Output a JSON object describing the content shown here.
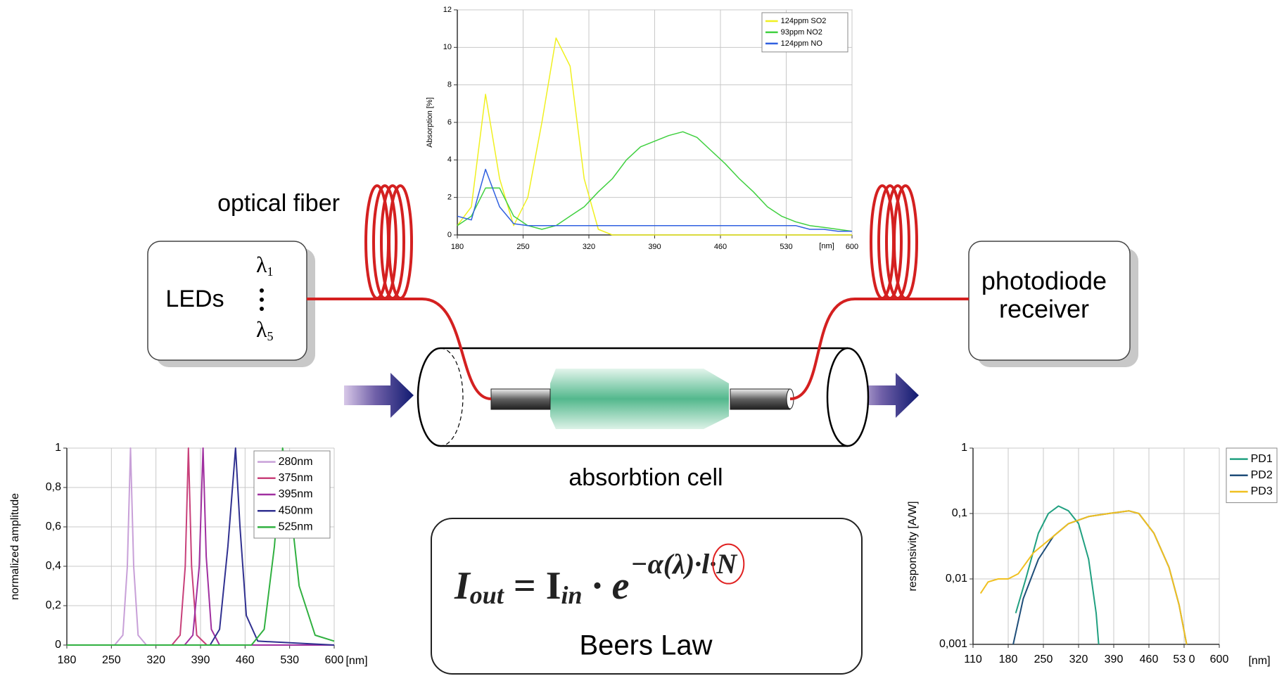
{
  "diagram": {
    "fiber_label": "optical fiber",
    "source": {
      "label": "LEDs",
      "lambda_first": {
        "symbol": "λ",
        "index": "1"
      },
      "lambda_last": {
        "symbol": "λ",
        "index": "5"
      }
    },
    "receiver": {
      "line1": "photodiode",
      "line2": "receiver"
    },
    "cell_label": "absorbtion cell",
    "formula": {
      "base1": "I",
      "sub1": "out",
      "mid": " = I",
      "sub2": "in",
      "tail": " · e",
      "exponent": "−α(λ)·l·N"
    },
    "law_label": "Beers Law"
  },
  "chart_data": [
    {
      "type": "line",
      "ylabel": "Absorption [%]",
      "xlabel": "[nm]",
      "x": [
        180,
        195,
        210,
        225,
        240,
        255,
        270,
        285,
        300,
        315,
        330,
        345,
        360,
        375,
        390,
        405,
        420,
        435,
        450,
        465,
        480,
        495,
        510,
        525,
        540,
        555,
        570,
        585,
        600
      ],
      "series": [
        {
          "name": "124ppm SO2",
          "color": "#f0f020",
          "values": [
            0.5,
            1.5,
            7.5,
            3,
            0.5,
            2,
            6,
            10.5,
            9,
            3,
            0.3,
            0,
            0,
            0,
            0,
            0,
            0,
            0,
            0,
            0,
            0,
            0,
            0,
            0,
            0,
            0,
            0,
            0,
            0
          ]
        },
        {
          "name": "93ppm NO2",
          "color": "#40d040",
          "values": [
            0.5,
            1,
            2.5,
            2.5,
            1,
            0.5,
            0.3,
            0.5,
            1,
            1.5,
            2.3,
            3,
            4,
            4.7,
            5,
            5.3,
            5.5,
            5.2,
            4.5,
            3.8,
            3,
            2.3,
            1.5,
            1,
            0.7,
            0.5,
            0.4,
            0.3,
            0.2
          ]
        },
        {
          "name": "124ppm NO",
          "color": "#3060e0",
          "values": [
            1,
            0.8,
            3.5,
            1.5,
            0.6,
            0.5,
            0.5,
            0.5,
            0.5,
            0.5,
            0.5,
            0.5,
            0.5,
            0.5,
            0.5,
            0.5,
            0.5,
            0.5,
            0.5,
            0.5,
            0.5,
            0.5,
            0.5,
            0.5,
            0.5,
            0.3,
            0.3,
            0.2,
            0.2
          ]
        }
      ],
      "xlim": [
        180,
        600
      ],
      "ylim": [
        0,
        12
      ],
      "xticks": [
        180,
        250,
        320,
        390,
        460,
        530,
        600
      ],
      "yticks": [
        0,
        2,
        4,
        6,
        8,
        10,
        12
      ],
      "grid": true,
      "legend": "upper right"
    },
    {
      "type": "line",
      "ylabel": "normalized amplitude",
      "xlabel": "[nm]",
      "series": [
        {
          "name": "280nm",
          "color": "#c8a0d8",
          "x": [
            180,
            255,
            268,
            275,
            280,
            285,
            292,
            305,
            600
          ],
          "values": [
            0,
            0,
            0.05,
            0.4,
            1,
            0.4,
            0.05,
            0,
            0
          ]
        },
        {
          "name": "375nm",
          "color": "#c8407a",
          "x": [
            180,
            345,
            358,
            366,
            371,
            376,
            384,
            400,
            600
          ],
          "values": [
            0,
            0,
            0.05,
            0.4,
            1,
            0.4,
            0.05,
            0,
            0
          ]
        },
        {
          "name": "395nm",
          "color": "#a030a0",
          "x": [
            180,
            365,
            378,
            388,
            394,
            399,
            407,
            420,
            600
          ],
          "values": [
            0,
            0,
            0.05,
            0.4,
            1,
            0.45,
            0.08,
            0,
            0
          ]
        },
        {
          "name": "450nm",
          "color": "#303090",
          "x": [
            180,
            405,
            420,
            433,
            445,
            452,
            462,
            480,
            600
          ],
          "values": [
            0,
            0,
            0.08,
            0.5,
            1,
            0.6,
            0.15,
            0.02,
            0
          ]
        },
        {
          "name": "525nm",
          "color": "#30b040",
          "x": [
            180,
            470,
            490,
            506,
            519,
            528,
            545,
            570,
            600
          ],
          "values": [
            0,
            0,
            0.08,
            0.5,
            1,
            0.8,
            0.3,
            0.05,
            0.02
          ]
        }
      ],
      "xlim": [
        180,
        600
      ],
      "ylim": [
        0,
        1
      ],
      "xticks": [
        180,
        250,
        320,
        390,
        460,
        530,
        600
      ],
      "yticks": [
        0,
        {
          "value": 0.2,
          "label": "0,2"
        },
        {
          "value": 0.4,
          "label": "0,4"
        },
        {
          "value": 0.6,
          "label": "0,6"
        },
        {
          "value": 0.8,
          "label": "0,8"
        },
        1
      ],
      "grid": true,
      "legend": "upper right"
    },
    {
      "type": "line",
      "ylabel": "responsivity [A/W]",
      "xlabel": "[nm]",
      "yscale": "log",
      "series": [
        {
          "name": "PD1",
          "color": "#20a080",
          "x": [
            195,
            215,
            240,
            260,
            280,
            300,
            320,
            340,
            355,
            360
          ],
          "values": [
            0.003,
            0.01,
            0.05,
            0.1,
            0.13,
            0.11,
            0.07,
            0.02,
            0.003,
            0.001
          ]
        },
        {
          "name": "PD2",
          "color": "#1f4e79",
          "x": [
            190,
            210,
            240,
            270,
            300,
            340,
            380,
            420,
            440,
            470,
            500,
            520,
            535
          ],
          "values": [
            0.001,
            0.005,
            0.02,
            0.045,
            0.07,
            0.09,
            0.1,
            0.11,
            0.1,
            0.05,
            0.015,
            0.004,
            0.001
          ]
        },
        {
          "name": "PD3",
          "color": "#f0c020",
          "x": [
            125,
            140,
            160,
            180,
            200,
            230,
            270,
            300,
            340,
            380,
            420,
            440,
            470,
            500,
            520,
            535
          ],
          "values": [
            0.006,
            0.009,
            0.01,
            0.01,
            0.012,
            0.025,
            0.045,
            0.07,
            0.09,
            0.1,
            0.11,
            0.1,
            0.05,
            0.015,
            0.004,
            0.001
          ]
        }
      ],
      "xlim": [
        110,
        600
      ],
      "ylim": [
        0.001,
        1
      ],
      "xticks": [
        110,
        180,
        250,
        320,
        390,
        460,
        {
          "value": 530,
          "label": "53 0"
        },
        600
      ],
      "yticks": [
        {
          "value": 0.001,
          "label": "0,001"
        },
        {
          "value": 0.01,
          "label": "0,01"
        },
        {
          "value": 0.1,
          "label": "0,1"
        },
        1
      ],
      "grid": true,
      "legend": "right"
    }
  ]
}
